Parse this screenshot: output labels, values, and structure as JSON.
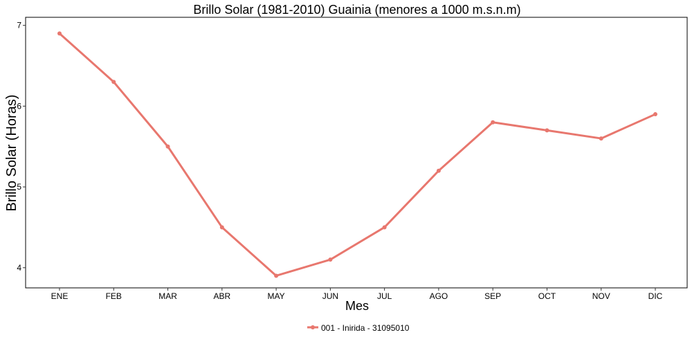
{
  "chart_data": {
    "type": "line",
    "title": "Brillo Solar (1981-2010) Guainia (menores a 1000 m.s.n.m)",
    "xlabel": "Mes",
    "ylabel": "Brillo Solar (Horas)",
    "categories": [
      "ENE",
      "FEB",
      "MAR",
      "ABR",
      "MAY",
      "JUN",
      "JUL",
      "AGO",
      "SEP",
      "OCT",
      "NOV",
      "DIC"
    ],
    "ylim": [
      3.75,
      7.1
    ],
    "yticks": [
      4,
      5,
      6,
      7
    ],
    "grid": false,
    "legend_position": "bottom",
    "series": [
      {
        "name": "001 - Inirida - 31095010",
        "color": "#E8776E",
        "values": [
          6.9,
          6.3,
          5.5,
          4.5,
          3.9,
          4.1,
          4.5,
          5.2,
          5.8,
          5.7,
          5.6,
          5.9
        ]
      }
    ]
  }
}
